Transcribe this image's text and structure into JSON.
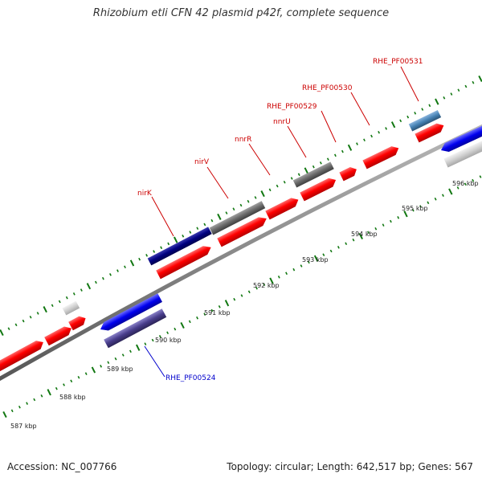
{
  "title": "Rhizobium etli CFN 42 plasmid p42f, complete sequence",
  "footer": {
    "accession": "Accession: NC_007766",
    "summary": "Topology: circular; Length: 642,517 bp; Genes: 567"
  },
  "colors": {
    "forward_cds": "#ff0000",
    "reverse_cds": "#0000ee",
    "label_forward": "#cc0000",
    "label_reverse": "#0000cc",
    "backbone": "#888888",
    "tick": "#117711"
  },
  "map": {
    "kbp_labels": [
      "587 kbp",
      "588 kbp",
      "589 kbp",
      "590 kbp",
      "591 kbp",
      "592 kbp",
      "593 kbp",
      "594 kbp",
      "595 kbp",
      "596 kbp"
    ],
    "features": [
      {
        "name": "nirK",
        "strand": "forward",
        "color": "#000080"
      },
      {
        "name": "nirV",
        "strand": "forward",
        "color": "#696969"
      },
      {
        "name": "nnrR",
        "strand": "forward",
        "color": "#ff0000"
      },
      {
        "name": "nnrU",
        "strand": "forward",
        "color": "#696969"
      },
      {
        "name": "RHE_PF00529",
        "strand": "forward",
        "color": "#ff0000"
      },
      {
        "name": "RHE_PF00530",
        "strand": "forward",
        "color": "#ff0000"
      },
      {
        "name": "RHE_PF00531",
        "strand": "forward",
        "color": "#4682b4"
      },
      {
        "name": "RHE_PF00524",
        "strand": "reverse",
        "color": "#483d8b"
      }
    ]
  }
}
